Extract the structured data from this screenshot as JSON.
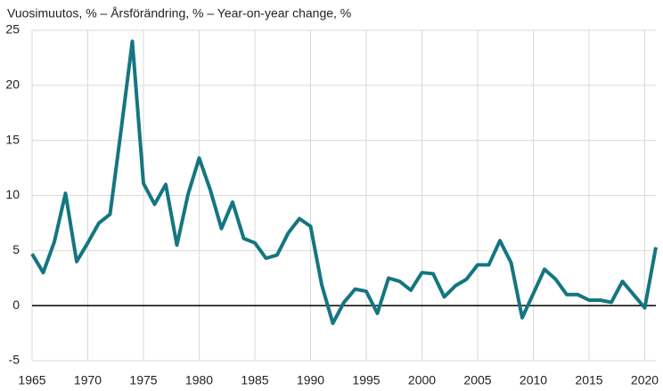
{
  "chart_data": {
    "type": "line",
    "title": "Vuosimuutos, % – Årsförändring, % – Year-on-year change, %",
    "x": [
      1965,
      1966,
      1967,
      1968,
      1969,
      1970,
      1971,
      1972,
      1973,
      1974,
      1975,
      1976,
      1977,
      1978,
      1979,
      1980,
      1981,
      1982,
      1983,
      1984,
      1985,
      1986,
      1987,
      1988,
      1989,
      1990,
      1991,
      1992,
      1993,
      1994,
      1995,
      1996,
      1997,
      1998,
      1999,
      2000,
      2001,
      2002,
      2003,
      2004,
      2005,
      2006,
      2007,
      2008,
      2009,
      2010,
      2011,
      2012,
      2013,
      2014,
      2015,
      2016,
      2017,
      2018,
      2019,
      2020,
      2021
    ],
    "series": [
      {
        "color": "#147681",
        "values": [
          4.7,
          3.0,
          5.8,
          10.2,
          4.0,
          5.7,
          7.5,
          8.3,
          16.0,
          24.0,
          11.1,
          9.2,
          11.0,
          5.5,
          10.1,
          13.4,
          10.5,
          7.0,
          9.4,
          6.1,
          5.7,
          4.3,
          4.6,
          6.6,
          7.9,
          7.2,
          1.9,
          -1.6,
          0.3,
          1.5,
          1.3,
          -0.7,
          2.5,
          2.2,
          1.4,
          3.0,
          2.9,
          0.8,
          1.8,
          2.4,
          3.7,
          3.7,
          5.9,
          3.9,
          -1.1,
          1.1,
          3.3,
          2.4,
          1.0,
          1.0,
          0.5,
          0.5,
          0.3,
          2.2,
          1.0,
          -0.2,
          5.3
        ]
      }
    ],
    "xlim": [
      1965,
      2021
    ],
    "xticks": [
      1965,
      1970,
      1975,
      1980,
      1985,
      1990,
      1995,
      2000,
      2005,
      2010,
      2015,
      2020
    ],
    "ylim": [
      -5,
      25
    ],
    "yticks": [
      -5,
      0,
      5,
      10,
      15,
      20,
      25
    ],
    "grid": true
  }
}
